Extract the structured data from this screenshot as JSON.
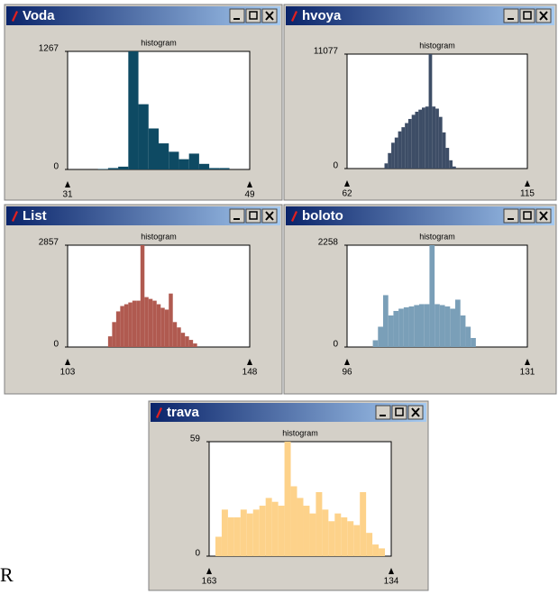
{
  "chart_data": [
    {
      "type": "histogram",
      "window_title": "Voda",
      "title": "histogram",
      "color": "#0e4a63",
      "bins": [
        34,
        35,
        36,
        37,
        38,
        39,
        40,
        41,
        42,
        43,
        44,
        45,
        46,
        47
      ],
      "values": [
        5,
        15,
        30,
        1267,
        700,
        440,
        280,
        190,
        110,
        170,
        60,
        15,
        15
      ],
      "xlim": [
        31,
        49
      ],
      "xticks": [
        31,
        49
      ],
      "ylim": [
        0,
        1267
      ],
      "yticks": [
        0,
        1267
      ]
    },
    {
      "type": "histogram",
      "window_title": "hvoya",
      "title": "histogram",
      "color": "#3d4d66",
      "bins": [
        73,
        74,
        75,
        76,
        77,
        78,
        79,
        80,
        81,
        82,
        83,
        84,
        85,
        86,
        87,
        88,
        89,
        90,
        91,
        92,
        93,
        94
      ],
      "values": [
        500,
        1500,
        2500,
        3000,
        3600,
        4000,
        4400,
        4800,
        5200,
        5500,
        5700,
        5900,
        6000,
        11077,
        6000,
        5800,
        5000,
        3500,
        2000,
        800,
        200
      ],
      "xlim": [
        62,
        115
      ],
      "xticks": [
        62,
        115
      ],
      "ylim": [
        0,
        11077
      ],
      "yticks": [
        0,
        11077
      ]
    },
    {
      "type": "histogram",
      "window_title": "List",
      "title": "histogram",
      "color": "#b05a50",
      "bins": [
        113,
        114,
        115,
        116,
        117,
        118,
        119,
        120,
        121,
        122,
        123,
        124,
        125,
        126,
        127,
        128,
        129,
        130,
        131,
        132,
        133,
        134,
        135
      ],
      "values": [
        300,
        700,
        1000,
        1150,
        1200,
        1250,
        1300,
        1300,
        2857,
        1400,
        1350,
        1300,
        1200,
        1100,
        1050,
        1500,
        700,
        550,
        400,
        300,
        200,
        100
      ],
      "xlim": [
        103,
        148
      ],
      "xticks": [
        103,
        148
      ],
      "ylim": [
        0,
        2857
      ],
      "yticks": [
        0,
        2857
      ]
    },
    {
      "type": "histogram",
      "window_title": "boloto",
      "title": "histogram",
      "color": "#7a9fb8",
      "bins": [
        101,
        102,
        103,
        104,
        105,
        106,
        107,
        108,
        109,
        110,
        111,
        112,
        113,
        114,
        115,
        116,
        117,
        118,
        119,
        120,
        121
      ],
      "values": [
        150,
        450,
        1150,
        700,
        800,
        850,
        880,
        900,
        930,
        950,
        950,
        2258,
        950,
        930,
        900,
        850,
        1050,
        700,
        450,
        200
      ],
      "xlim": [
        96,
        131
      ],
      "xticks": [
        96,
        131
      ],
      "ylim": [
        0,
        2258
      ],
      "yticks": [
        0,
        2258
      ]
    },
    {
      "type": "histogram",
      "window_title": "trava",
      "title": "histogram",
      "color": "#fdd28a",
      "bins": [
        162,
        161,
        160,
        159,
        158,
        157,
        156,
        155,
        154,
        153,
        152,
        151,
        150,
        149,
        148,
        147,
        146,
        145,
        144,
        143,
        142,
        141,
        140,
        139,
        138,
        137,
        136,
        135
      ],
      "values": [
        10,
        24,
        20,
        20,
        24,
        22,
        24,
        26,
        30,
        28,
        26,
        59,
        36,
        30,
        26,
        22,
        33,
        24,
        18,
        22,
        20,
        18,
        16,
        33,
        12,
        6,
        4
      ],
      "xlim": [
        163,
        134
      ],
      "xticks": [
        163,
        134
      ],
      "ylim": [
        0,
        59
      ],
      "yticks": [
        0,
        59
      ]
    }
  ],
  "corner_text": "R"
}
